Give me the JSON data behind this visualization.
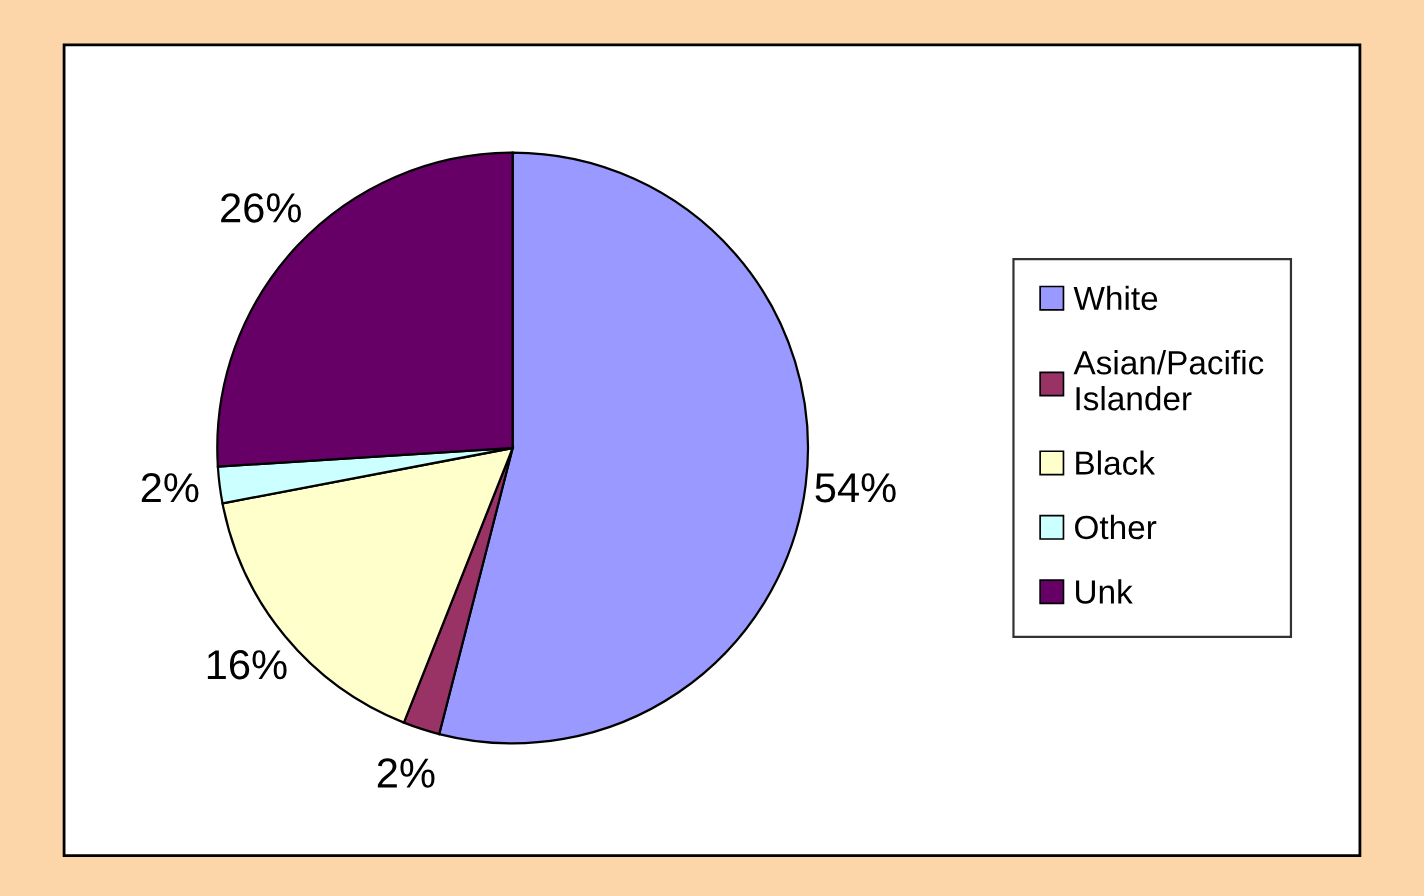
{
  "chart_data": {
    "type": "pie",
    "categories": [
      "White",
      "Asian/Pacific Islander",
      "Black",
      "Other",
      "Unk"
    ],
    "values": [
      54,
      2,
      16,
      2,
      26
    ],
    "colors": [
      "#9999ff",
      "#993366",
      "#ffffcc",
      "#ccffff",
      "#660066"
    ],
    "value_labels": [
      "54%",
      "2%",
      "16%",
      "2%",
      "26%"
    ],
    "legend": "right"
  }
}
